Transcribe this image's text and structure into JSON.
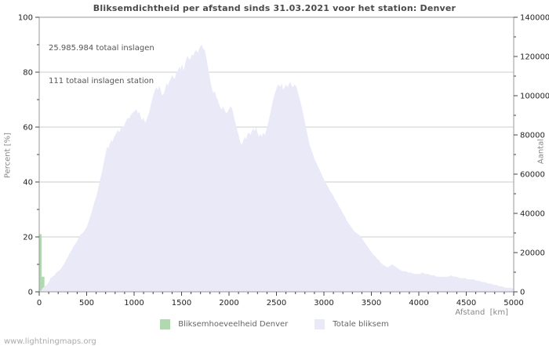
{
  "watermark": "www.lightningmaps.org",
  "chart_data": {
    "type": "area",
    "title": "Bliksemdichtheid per afstand sinds 31.03.2021 voor het station: Denver",
    "xlabel": "Afstand  [km]",
    "ylabel_left": "Percent  [%]",
    "ylabel_right": "Aantal",
    "annotations": [
      "25.985.984 totaal inslagen",
      "111 totaal inslagen station"
    ],
    "axes": {
      "x": {
        "min": 0,
        "max": 5000,
        "major_ticks": [
          0,
          500,
          1000,
          1500,
          2000,
          2500,
          3000,
          3500,
          4000,
          4500,
          5000
        ],
        "minor_step": 100
      },
      "left": {
        "min": 0,
        "max": 100,
        "major_ticks": [
          0,
          20,
          40,
          60,
          80,
          100
        ],
        "minor_step": 10,
        "gridlines": [
          20,
          40,
          60,
          80
        ]
      },
      "right": {
        "min": 0,
        "max": 140000,
        "major_ticks": [
          0,
          20000,
          40000,
          60000,
          80000,
          100000,
          120000,
          140000
        ],
        "minor_step": 10000
      }
    },
    "colors": {
      "line": "#7c7cdb",
      "fill": "#e9e9f8",
      "bars": "#b0d9b0",
      "grid": "#cccccc",
      "axis": "#999999",
      "tick": "#444444",
      "tick_label": "#222222"
    },
    "legend": [
      {
        "label": "Bliksemhoeveelheid Denver",
        "color": "#b0d9b0"
      },
      {
        "label": "Totale bliksem",
        "color": "#e9e9f8"
      }
    ],
    "series": [
      {
        "name": "Bliksemhoeveelheid Denver",
        "type": "bars",
        "unit": "percent",
        "bars": [
          [
            0,
            25,
            21
          ],
          [
            25,
            55,
            5.5
          ],
          [
            55,
            85,
            2
          ]
        ]
      },
      {
        "name": "Totale bliksem",
        "type": "area",
        "unit": "percent",
        "points": [
          [
            0,
            0
          ],
          [
            20,
            0.5
          ],
          [
            40,
            1.5
          ],
          [
            60,
            2
          ],
          [
            80,
            2.5
          ],
          [
            100,
            3.5
          ],
          [
            120,
            5
          ],
          [
            140,
            5.5
          ],
          [
            160,
            6
          ],
          [
            180,
            7
          ],
          [
            200,
            7.5
          ],
          [
            220,
            8
          ],
          [
            240,
            9
          ],
          [
            260,
            10
          ],
          [
            280,
            11.5
          ],
          [
            300,
            12.5
          ],
          [
            320,
            14
          ],
          [
            340,
            15
          ],
          [
            360,
            16.5
          ],
          [
            380,
            17.5
          ],
          [
            400,
            18.5
          ],
          [
            420,
            20
          ],
          [
            440,
            21
          ],
          [
            460,
            21.5
          ],
          [
            480,
            22.5
          ],
          [
            500,
            23.5
          ],
          [
            520,
            25.5
          ],
          [
            540,
            27.5
          ],
          [
            560,
            30
          ],
          [
            580,
            32.5
          ],
          [
            600,
            34.5
          ],
          [
            620,
            37.5
          ],
          [
            640,
            40.5
          ],
          [
            660,
            43.5
          ],
          [
            680,
            47
          ],
          [
            700,
            50.5
          ],
          [
            710,
            52
          ],
          [
            720,
            53
          ],
          [
            730,
            52
          ],
          [
            740,
            53.5
          ],
          [
            750,
            54.5
          ],
          [
            760,
            55.5
          ],
          [
            770,
            54.5
          ],
          [
            780,
            55.5
          ],
          [
            790,
            56.5
          ],
          [
            800,
            57
          ],
          [
            815,
            58
          ],
          [
            830,
            59
          ],
          [
            845,
            58
          ],
          [
            860,
            59.5
          ],
          [
            875,
            60.5
          ],
          [
            890,
            60
          ],
          [
            905,
            61.5
          ],
          [
            920,
            62.5
          ],
          [
            935,
            63.5
          ],
          [
            950,
            63
          ],
          [
            965,
            64.5
          ],
          [
            980,
            65
          ],
          [
            995,
            65.5
          ],
          [
            1010,
            66
          ],
          [
            1025,
            66.5
          ],
          [
            1040,
            65
          ],
          [
            1055,
            65.5
          ],
          [
            1070,
            63.5
          ],
          [
            1085,
            62.5
          ],
          [
            1100,
            63.5
          ],
          [
            1115,
            61.5
          ],
          [
            1130,
            62.5
          ],
          [
            1145,
            64
          ],
          [
            1160,
            65.5
          ],
          [
            1175,
            68
          ],
          [
            1190,
            70
          ],
          [
            1205,
            72
          ],
          [
            1220,
            73.5
          ],
          [
            1235,
            74.5
          ],
          [
            1250,
            73.5
          ],
          [
            1265,
            75
          ],
          [
            1280,
            73.5
          ],
          [
            1295,
            71.5
          ],
          [
            1310,
            72
          ],
          [
            1325,
            73.5
          ],
          [
            1340,
            76
          ],
          [
            1355,
            75
          ],
          [
            1370,
            76.5
          ],
          [
            1385,
            77.5
          ],
          [
            1400,
            79
          ],
          [
            1415,
            78
          ],
          [
            1430,
            77.5
          ],
          [
            1445,
            80
          ],
          [
            1460,
            80.5
          ],
          [
            1475,
            82
          ],
          [
            1490,
            81
          ],
          [
            1505,
            83
          ],
          [
            1520,
            80.5
          ],
          [
            1535,
            82.5
          ],
          [
            1550,
            85
          ],
          [
            1565,
            86
          ],
          [
            1580,
            84.5
          ],
          [
            1595,
            85
          ],
          [
            1610,
            86.5
          ],
          [
            1625,
            86
          ],
          [
            1640,
            87.5
          ],
          [
            1655,
            88
          ],
          [
            1670,
            87
          ],
          [
            1685,
            88.5
          ],
          [
            1700,
            89.5
          ],
          [
            1715,
            90
          ],
          [
            1730,
            88.5
          ],
          [
            1745,
            88
          ],
          [
            1760,
            85.5
          ],
          [
            1775,
            82.5
          ],
          [
            1790,
            79.5
          ],
          [
            1805,
            76.5
          ],
          [
            1820,
            74
          ],
          [
            1835,
            72.5
          ],
          [
            1850,
            73
          ],
          [
            1865,
            71
          ],
          [
            1880,
            70
          ],
          [
            1895,
            68.5
          ],
          [
            1910,
            67
          ],
          [
            1925,
            66.5
          ],
          [
            1940,
            67.5
          ],
          [
            1955,
            66
          ],
          [
            1970,
            65
          ],
          [
            1985,
            65.5
          ],
          [
            2000,
            66.5
          ],
          [
            2015,
            67.5
          ],
          [
            2030,
            67
          ],
          [
            2045,
            65
          ],
          [
            2060,
            62.5
          ],
          [
            2075,
            60.5
          ],
          [
            2090,
            58.5
          ],
          [
            2105,
            56.5
          ],
          [
            2120,
            54.5
          ],
          [
            2135,
            53.5
          ],
          [
            2150,
            55
          ],
          [
            2165,
            56.5
          ],
          [
            2180,
            55.5
          ],
          [
            2195,
            57.5
          ],
          [
            2210,
            58
          ],
          [
            2225,
            57
          ],
          [
            2240,
            58.5
          ],
          [
            2255,
            59.5
          ],
          [
            2270,
            58.5
          ],
          [
            2285,
            60
          ],
          [
            2300,
            58
          ],
          [
            2315,
            56.5
          ],
          [
            2330,
            57.5
          ],
          [
            2345,
            56.5
          ],
          [
            2360,
            58
          ],
          [
            2375,
            57
          ],
          [
            2390,
            58.5
          ],
          [
            2405,
            60.5
          ],
          [
            2420,
            62.5
          ],
          [
            2435,
            65
          ],
          [
            2450,
            67.5
          ],
          [
            2465,
            70
          ],
          [
            2480,
            72
          ],
          [
            2495,
            73.5
          ],
          [
            2510,
            75
          ],
          [
            2525,
            75.5
          ],
          [
            2540,
            74.5
          ],
          [
            2555,
            76
          ],
          [
            2570,
            73.5
          ],
          [
            2585,
            74.5
          ],
          [
            2600,
            75.5
          ],
          [
            2615,
            74.5
          ],
          [
            2630,
            75.5
          ],
          [
            2645,
            76.5
          ],
          [
            2660,
            75
          ],
          [
            2675,
            74.5
          ],
          [
            2690,
            75.5
          ],
          [
            2705,
            75
          ],
          [
            2720,
            73.5
          ],
          [
            2735,
            71.5
          ],
          [
            2750,
            69.5
          ],
          [
            2765,
            67.5
          ],
          [
            2780,
            65
          ],
          [
            2795,
            62.5
          ],
          [
            2810,
            60
          ],
          [
            2825,
            57.5
          ],
          [
            2840,
            55
          ],
          [
            2855,
            53
          ],
          [
            2870,
            51.5
          ],
          [
            2885,
            50
          ],
          [
            2900,
            48.5
          ],
          [
            2920,
            47
          ],
          [
            2940,
            45.5
          ],
          [
            2960,
            44
          ],
          [
            2980,
            42.5
          ],
          [
            3000,
            41
          ],
          [
            3020,
            39.5
          ],
          [
            3040,
            38.5
          ],
          [
            3060,
            37
          ],
          [
            3080,
            36
          ],
          [
            3100,
            35
          ],
          [
            3120,
            33.5
          ],
          [
            3140,
            32.5
          ],
          [
            3160,
            31
          ],
          [
            3180,
            30
          ],
          [
            3200,
            28.5
          ],
          [
            3220,
            27.5
          ],
          [
            3240,
            26
          ],
          [
            3260,
            25
          ],
          [
            3280,
            24
          ],
          [
            3300,
            23
          ],
          [
            3320,
            22
          ],
          [
            3340,
            21.5
          ],
          [
            3360,
            21
          ],
          [
            3380,
            20.5
          ],
          [
            3400,
            19.5
          ],
          [
            3420,
            18.5
          ],
          [
            3440,
            17.5
          ],
          [
            3460,
            16.5
          ],
          [
            3480,
            15.5
          ],
          [
            3500,
            14.5
          ],
          [
            3520,
            13.5
          ],
          [
            3540,
            13
          ],
          [
            3560,
            12
          ],
          [
            3580,
            11.5
          ],
          [
            3600,
            10.5
          ],
          [
            3620,
            10
          ],
          [
            3640,
            9.5
          ],
          [
            3660,
            9
          ],
          [
            3680,
            9
          ],
          [
            3700,
            9.5
          ],
          [
            3720,
            10
          ],
          [
            3740,
            9.5
          ],
          [
            3760,
            9
          ],
          [
            3780,
            8.5
          ],
          [
            3800,
            8
          ],
          [
            3830,
            7.5
          ],
          [
            3860,
            7.5
          ],
          [
            3890,
            7
          ],
          [
            3920,
            7
          ],
          [
            3950,
            6.5
          ],
          [
            3980,
            6.5
          ],
          [
            4010,
            6.5
          ],
          [
            4040,
            7
          ],
          [
            4070,
            6.5
          ],
          [
            4100,
            6.5
          ],
          [
            4130,
            6
          ],
          [
            4160,
            6
          ],
          [
            4190,
            5.5
          ],
          [
            4220,
            5.5
          ],
          [
            4250,
            5.5
          ],
          [
            4280,
            5.5
          ],
          [
            4310,
            5.5
          ],
          [
            4340,
            6
          ],
          [
            4370,
            5.5
          ],
          [
            4400,
            5.5
          ],
          [
            4430,
            5
          ],
          [
            4460,
            5
          ],
          [
            4490,
            5
          ],
          [
            4520,
            4.5
          ],
          [
            4550,
            4.5
          ],
          [
            4580,
            4.5
          ],
          [
            4610,
            4
          ],
          [
            4640,
            4
          ],
          [
            4670,
            3.5
          ],
          [
            4700,
            3.5
          ],
          [
            4730,
            3
          ],
          [
            4760,
            3
          ],
          [
            4790,
            2.5
          ],
          [
            4820,
            2.5
          ],
          [
            4850,
            2
          ],
          [
            4880,
            2
          ],
          [
            4910,
            1.5
          ],
          [
            4940,
            1.5
          ],
          [
            4970,
            1.5
          ],
          [
            5000,
            1
          ]
        ]
      }
    ]
  }
}
